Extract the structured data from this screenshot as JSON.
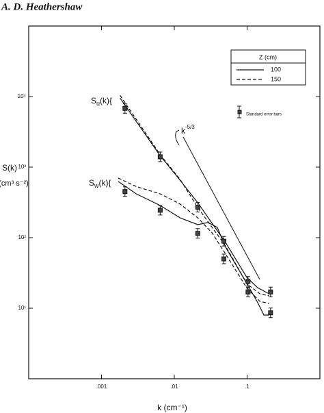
{
  "header": "A. D. Heathershaw",
  "chart_data": {
    "type": "line",
    "log_x": true,
    "log_y": true,
    "x_label": "k (cm⁻¹)",
    "y_label": [
      "S(k)",
      "(cm³ s⁻²)"
    ],
    "xlim": [
      0.0001,
      1
    ],
    "ylim": [
      1,
      100000
    ],
    "xticks": [
      {
        "value": 0.001,
        "label": ".001"
      },
      {
        "value": 0.01,
        "label": ".01"
      },
      {
        "value": 0.1,
        "label": ".1"
      }
    ],
    "yticks": [
      {
        "value": 10,
        "label": "10¹"
      },
      {
        "value": 100,
        "label": "10²"
      },
      {
        "value": 1000,
        "label": "10³"
      },
      {
        "value": 10000,
        "label": "10⁴"
      }
    ],
    "legend_title": "Z (cm)",
    "legend_position": "upper right",
    "series": [
      {
        "name": "100",
        "dashed": false,
        "color": "#111111",
        "u": {
          "x": [
            0.0018,
            0.0064,
            0.011,
            0.021,
            0.033,
            0.05,
            0.1,
            0.14,
            0.2
          ],
          "values": [
            9500,
            1450,
            730,
            313,
            160,
            87,
            27,
            19.5,
            16
          ]
        },
        "w": {
          "x": [
            0.0017,
            0.003,
            0.0064,
            0.012,
            0.021,
            0.029,
            0.039,
            0.05,
            0.1,
            0.14,
            0.17,
            0.2
          ],
          "values": [
            625,
            418,
            286,
            191,
            153,
            164,
            140,
            75,
            22,
            12,
            8,
            8
          ]
        }
      },
      {
        "name": "150",
        "dashed": true,
        "color": "#111111",
        "u": {
          "x": [
            0.0018,
            0.0064,
            0.012,
            0.021,
            0.033,
            0.05,
            0.1,
            0.15,
            0.2
          ],
          "values": [
            10400,
            1500,
            670,
            267,
            140,
            78,
            22,
            16,
            15
          ]
        },
        "w": {
          "x": [
            0.0017,
            0.003,
            0.0064,
            0.012,
            0.021,
            0.033,
            0.05,
            0.1,
            0.15,
            0.2
          ],
          "values": [
            700,
            530,
            418,
            300,
            191,
            117,
            60,
            19,
            12.5,
            11.7
          ]
        }
      }
    ],
    "points": {
      "u": {
        "x": [
          0.0021,
          0.0064,
          0.021,
          0.048,
          0.103,
          0.21
        ],
        "values": [
          6800,
          1400,
          270,
          89,
          24,
          17
        ]
      },
      "w": {
        "x": [
          0.0021,
          0.0064,
          0.021,
          0.048,
          0.103,
          0.21
        ],
        "values": [
          450,
          245,
          115,
          50,
          17,
          8.6
        ]
      }
    },
    "points_label": "Standard error bars",
    "curve_labels": [
      {
        "base": "S",
        "sub": "u",
        "tail": "(k){"
      },
      {
        "base": "S",
        "sub": "w",
        "tail": "(k){"
      }
    ],
    "annotation": {
      "base": "k",
      "exponent": "-5/3"
    }
  }
}
